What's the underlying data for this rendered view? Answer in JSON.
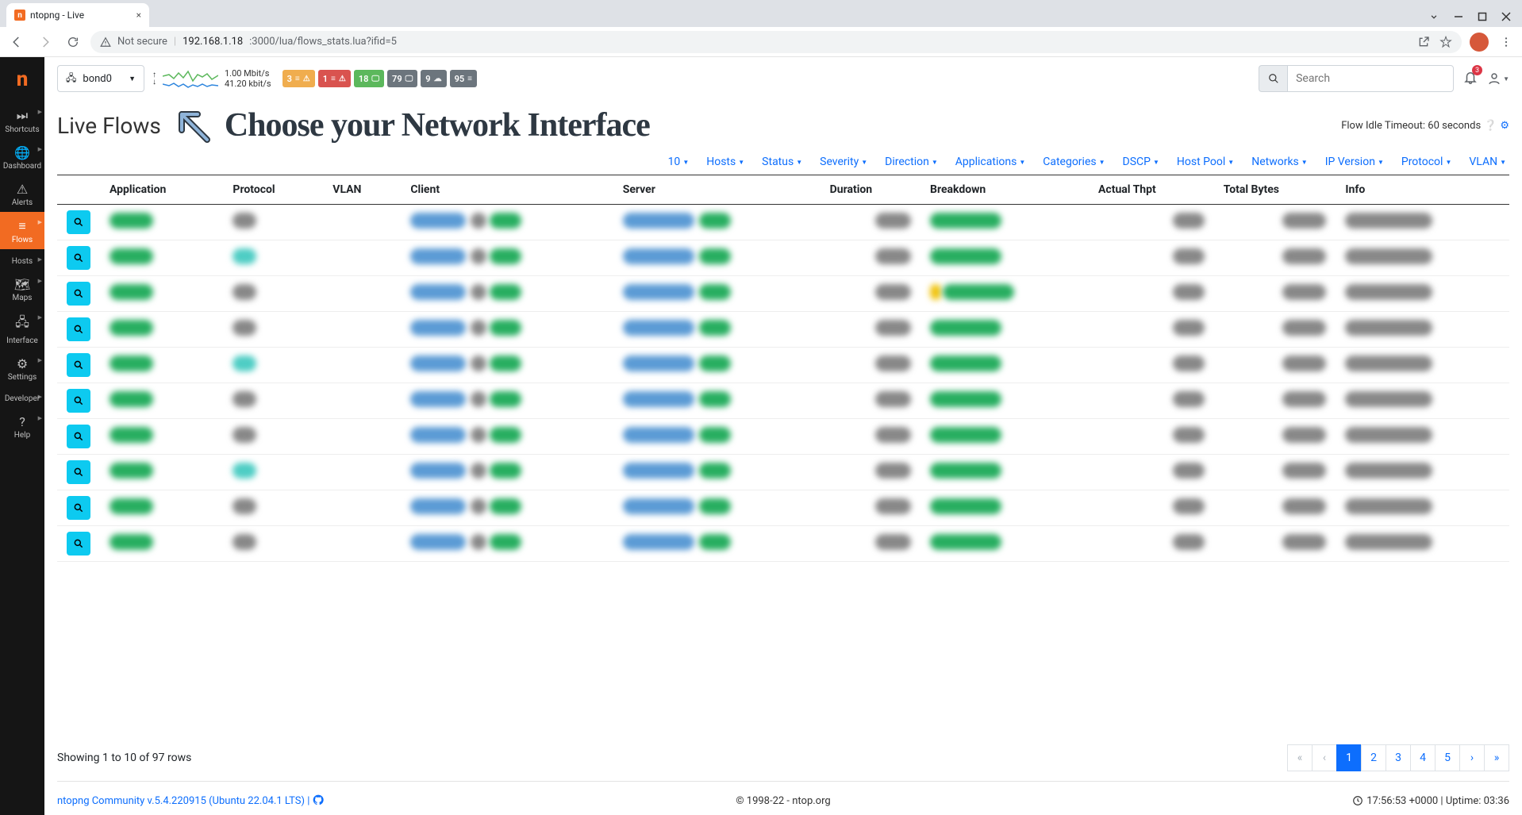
{
  "browser": {
    "tab_title": "ntopng - Live",
    "not_secure_label": "Not secure",
    "url_host": "192.168.1.18",
    "url_path": ":3000/lua/flows_stats.lua?ifid=5"
  },
  "sidebar": {
    "items": [
      {
        "icon": "⏭",
        "label": "Shortcuts",
        "caret": true
      },
      {
        "icon": "🌐",
        "label": "Dashboard",
        "caret": true
      },
      {
        "icon": "⚠",
        "label": "Alerts",
        "caret": false
      },
      {
        "icon": "≡",
        "label": "Flows",
        "caret": true,
        "active": true
      },
      {
        "icon": "</>",
        "label": "Hosts",
        "caret": true
      },
      {
        "icon": "🗺",
        "label": "Maps",
        "caret": true
      },
      {
        "icon": "🖧",
        "label": "Interface",
        "caret": true
      },
      {
        "icon": "⚙",
        "label": "Settings",
        "caret": true
      },
      {
        "icon": "</> ",
        "label": "Developer",
        "caret": true
      },
      {
        "icon": "?",
        "label": "Help",
        "caret": true
      }
    ]
  },
  "topbar": {
    "iface_name": "bond0",
    "rate_up": "1.00 Mbit/s",
    "rate_down": "41.20 kbit/s",
    "badges": [
      {
        "n": "3",
        "icon": "≡",
        "extra": "⚠",
        "bg": "#f0ad4e"
      },
      {
        "n": "1",
        "icon": "≡",
        "extra": "⚠",
        "bg": "#d9534f"
      },
      {
        "n": "18",
        "icon": "🖵",
        "extra": "",
        "bg": "#5cb85c"
      },
      {
        "n": "79",
        "icon": "🖵",
        "extra": "",
        "bg": "#6c757d"
      },
      {
        "n": "9",
        "icon": "☁",
        "extra": "",
        "bg": "#6c757d"
      },
      {
        "n": "95",
        "icon": "≡",
        "extra": "",
        "bg": "#6c757d"
      }
    ],
    "search_placeholder": "Search",
    "bell_count": "3"
  },
  "page": {
    "title": "Live Flows",
    "annotation": "Choose your Network Interface",
    "timeout_label": "Flow Idle Timeout: 60 seconds"
  },
  "filters": [
    "10",
    "Hosts",
    "Status",
    "Severity",
    "Direction",
    "Applications",
    "Categories",
    "DSCP",
    "Host Pool",
    "Networks",
    "IP Version",
    "Protocol",
    "VLAN"
  ],
  "table": {
    "columns": [
      "",
      "Application",
      "Protocol",
      "VLAN",
      "Client",
      "Server",
      "Duration",
      "Breakdown",
      "Actual Thpt",
      "Total Bytes",
      "Info"
    ],
    "row_count": 10,
    "blur_colors": {
      "green": "#27ae60",
      "teal": "#4ecdc4",
      "blue": "#5b9bd5",
      "gray": "#888888",
      "yellow": "#f1c40f"
    }
  },
  "pager": {
    "showing_text": "Showing 1 to 10 of 97 rows",
    "pages": [
      "«",
      "‹",
      "1",
      "2",
      "3",
      "4",
      "5",
      "›",
      "»"
    ],
    "active_index": 2
  },
  "footer": {
    "version": "ntopng Community v.5.4.220915 (Ubuntu 22.04.1 LTS) |",
    "copyright": "© 1998-22 - ntop.org",
    "uptime": "17:56:53 +0000 | Uptime: 03:36"
  },
  "spark": {
    "stroke1": "#5cb85c",
    "stroke2": "#2e86de",
    "bg": "#ffffff"
  }
}
